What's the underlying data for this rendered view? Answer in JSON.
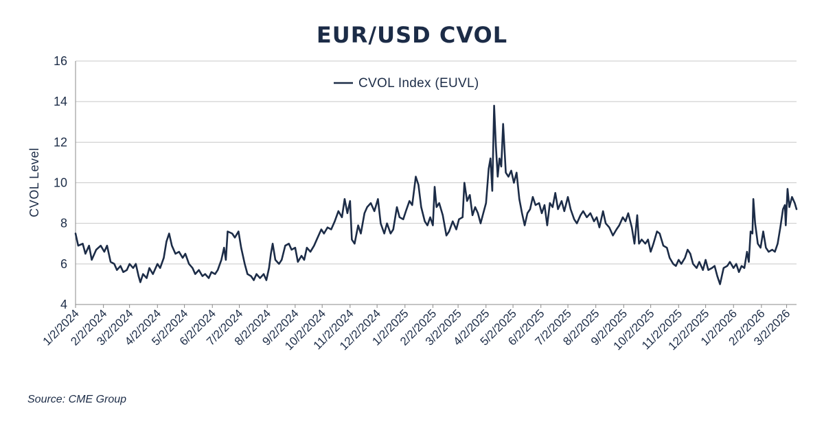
{
  "chart_data": {
    "type": "line",
    "title": "EUR/USD CVOL",
    "ylabel": "CVOL Level",
    "xlabel": "",
    "ylim": [
      4,
      16
    ],
    "y_ticks": [
      "4",
      "6",
      "8",
      "10",
      "12",
      "14",
      "16"
    ],
    "x_range": [
      "2024-01-02",
      "2026-03-13"
    ],
    "x_tick_dates": [
      "2024-01-02",
      "2024-02-02",
      "2024-03-02",
      "2024-04-02",
      "2024-05-02",
      "2024-06-02",
      "2024-07-02",
      "2024-08-02",
      "2024-09-02",
      "2024-10-02",
      "2024-11-02",
      "2024-12-02",
      "2025-01-02",
      "2025-02-02",
      "2025-03-02",
      "2025-04-02",
      "2025-05-02",
      "2025-06-02",
      "2025-07-02",
      "2025-08-02",
      "2025-09-02",
      "2025-10-02",
      "2025-11-02",
      "2025-12-02",
      "2026-01-02",
      "2026-02-02",
      "2026-03-02"
    ],
    "x_tick_labels": [
      "1/2/2024",
      "2/2/2024",
      "3/2/2024",
      "4/2/2024",
      "5/2/2024",
      "6/2/2024",
      "7/2/2024",
      "8/2/2024",
      "9/2/2024",
      "10/2/2024",
      "11/2/2024",
      "12/2/2024",
      "1/2/2025",
      "2/2/2025",
      "3/2/2025",
      "4/2/2025",
      "5/2/2025",
      "6/2/2025",
      "7/2/2025",
      "8/2/2025",
      "9/2/2025",
      "10/2/2025",
      "11/2/2025",
      "12/2/2025",
      "1/2/2026",
      "2/2/2026",
      "3/2/2026"
    ],
    "grid": true,
    "legend": "top-center",
    "series": [
      {
        "name": "CVOL Index (EUVL)",
        "color": "#1c2c47",
        "points": [
          [
            "2024-01-02",
            7.5
          ],
          [
            "2024-01-05",
            6.9
          ],
          [
            "2024-01-10",
            7.0
          ],
          [
            "2024-01-13",
            6.5
          ],
          [
            "2024-01-17",
            6.9
          ],
          [
            "2024-01-20",
            6.2
          ],
          [
            "2024-01-25",
            6.7
          ],
          [
            "2024-01-30",
            6.9
          ],
          [
            "2024-02-03",
            6.6
          ],
          [
            "2024-02-06",
            6.9
          ],
          [
            "2024-02-10",
            6.1
          ],
          [
            "2024-02-14",
            6.0
          ],
          [
            "2024-02-17",
            5.7
          ],
          [
            "2024-02-21",
            5.9
          ],
          [
            "2024-02-24",
            5.6
          ],
          [
            "2024-02-28",
            5.7
          ],
          [
            "2024-03-02",
            6.0
          ],
          [
            "2024-03-06",
            5.8
          ],
          [
            "2024-03-09",
            6.0
          ],
          [
            "2024-03-12",
            5.4
          ],
          [
            "2024-03-14",
            5.1
          ],
          [
            "2024-03-17",
            5.5
          ],
          [
            "2024-03-21",
            5.3
          ],
          [
            "2024-03-24",
            5.8
          ],
          [
            "2024-03-28",
            5.5
          ],
          [
            "2024-04-02",
            6.0
          ],
          [
            "2024-04-05",
            5.8
          ],
          [
            "2024-04-09",
            6.3
          ],
          [
            "2024-04-12",
            7.1
          ],
          [
            "2024-04-15",
            7.5
          ],
          [
            "2024-04-18",
            6.9
          ],
          [
            "2024-04-22",
            6.5
          ],
          [
            "2024-04-26",
            6.6
          ],
          [
            "2024-04-30",
            6.3
          ],
          [
            "2024-05-03",
            6.5
          ],
          [
            "2024-05-07",
            6.0
          ],
          [
            "2024-05-11",
            5.8
          ],
          [
            "2024-05-14",
            5.5
          ],
          [
            "2024-05-18",
            5.7
          ],
          [
            "2024-05-22",
            5.4
          ],
          [
            "2024-05-25",
            5.5
          ],
          [
            "2024-05-29",
            5.3
          ],
          [
            "2024-06-01",
            5.6
          ],
          [
            "2024-06-05",
            5.5
          ],
          [
            "2024-06-08",
            5.7
          ],
          [
            "2024-06-12",
            6.2
          ],
          [
            "2024-06-15",
            6.8
          ],
          [
            "2024-06-17",
            6.2
          ],
          [
            "2024-06-19",
            7.6
          ],
          [
            "2024-06-24",
            7.5
          ],
          [
            "2024-06-27",
            7.3
          ],
          [
            "2024-07-01",
            7.6
          ],
          [
            "2024-07-04",
            6.8
          ],
          [
            "2024-07-08",
            6.0
          ],
          [
            "2024-07-11",
            5.5
          ],
          [
            "2024-07-15",
            5.4
          ],
          [
            "2024-07-18",
            5.2
          ],
          [
            "2024-07-21",
            5.5
          ],
          [
            "2024-07-25",
            5.3
          ],
          [
            "2024-07-29",
            5.5
          ],
          [
            "2024-08-01",
            5.2
          ],
          [
            "2024-08-04",
            5.8
          ],
          [
            "2024-08-06",
            6.5
          ],
          [
            "2024-08-08",
            7.0
          ],
          [
            "2024-08-11",
            6.2
          ],
          [
            "2024-08-15",
            6.0
          ],
          [
            "2024-08-18",
            6.2
          ],
          [
            "2024-08-22",
            6.9
          ],
          [
            "2024-08-26",
            7.0
          ],
          [
            "2024-08-29",
            6.7
          ],
          [
            "2024-09-02",
            6.8
          ],
          [
            "2024-09-05",
            6.1
          ],
          [
            "2024-09-09",
            6.4
          ],
          [
            "2024-09-12",
            6.2
          ],
          [
            "2024-09-15",
            6.8
          ],
          [
            "2024-09-19",
            6.6
          ],
          [
            "2024-09-23",
            6.9
          ],
          [
            "2024-09-26",
            7.2
          ],
          [
            "2024-10-01",
            7.7
          ],
          [
            "2024-10-04",
            7.5
          ],
          [
            "2024-10-08",
            7.8
          ],
          [
            "2024-10-12",
            7.7
          ],
          [
            "2024-10-16",
            8.1
          ],
          [
            "2024-10-20",
            8.6
          ],
          [
            "2024-10-24",
            8.3
          ],
          [
            "2024-10-27",
            9.2
          ],
          [
            "2024-10-30",
            8.5
          ],
          [
            "2024-11-02",
            9.1
          ],
          [
            "2024-11-04",
            7.2
          ],
          [
            "2024-11-07",
            7.0
          ],
          [
            "2024-11-11",
            7.9
          ],
          [
            "2024-11-14",
            7.5
          ],
          [
            "2024-11-18",
            8.5
          ],
          [
            "2024-11-21",
            8.8
          ],
          [
            "2024-11-25",
            9.0
          ],
          [
            "2024-11-29",
            8.6
          ],
          [
            "2024-12-03",
            9.2
          ],
          [
            "2024-12-06",
            8.0
          ],
          [
            "2024-12-10",
            7.5
          ],
          [
            "2024-12-13",
            8.0
          ],
          [
            "2024-12-17",
            7.5
          ],
          [
            "2024-12-20",
            7.7
          ],
          [
            "2024-12-24",
            8.8
          ],
          [
            "2024-12-27",
            8.3
          ],
          [
            "2024-12-31",
            8.2
          ],
          [
            "2025-01-03",
            8.6
          ],
          [
            "2025-01-07",
            9.1
          ],
          [
            "2025-01-10",
            8.9
          ],
          [
            "2025-01-14",
            10.3
          ],
          [
            "2025-01-17",
            9.9
          ],
          [
            "2025-01-20",
            8.8
          ],
          [
            "2025-01-24",
            8.1
          ],
          [
            "2025-01-27",
            7.9
          ],
          [
            "2025-01-30",
            8.3
          ],
          [
            "2025-02-02",
            7.9
          ],
          [
            "2025-02-04",
            9.8
          ],
          [
            "2025-02-06",
            8.8
          ],
          [
            "2025-02-09",
            9.0
          ],
          [
            "2025-02-13",
            8.4
          ],
          [
            "2025-02-17",
            7.4
          ],
          [
            "2025-02-20",
            7.6
          ],
          [
            "2025-02-24",
            8.1
          ],
          [
            "2025-02-28",
            7.7
          ],
          [
            "2025-03-03",
            8.2
          ],
          [
            "2025-03-07",
            8.3
          ],
          [
            "2025-03-09",
            10.0
          ],
          [
            "2025-03-12",
            9.1
          ],
          [
            "2025-03-15",
            9.4
          ],
          [
            "2025-03-18",
            8.4
          ],
          [
            "2025-03-21",
            8.8
          ],
          [
            "2025-03-24",
            8.5
          ],
          [
            "2025-03-27",
            8.0
          ],
          [
            "2025-03-30",
            8.5
          ],
          [
            "2025-04-02",
            9.0
          ],
          [
            "2025-04-05",
            10.7
          ],
          [
            "2025-04-07",
            11.2
          ],
          [
            "2025-04-09",
            9.6
          ],
          [
            "2025-04-11",
            13.8
          ],
          [
            "2025-04-13",
            11.8
          ],
          [
            "2025-04-15",
            10.3
          ],
          [
            "2025-04-17",
            11.2
          ],
          [
            "2025-04-19",
            10.8
          ],
          [
            "2025-04-21",
            12.9
          ],
          [
            "2025-04-24",
            10.5
          ],
          [
            "2025-04-27",
            10.3
          ],
          [
            "2025-04-30",
            10.6
          ],
          [
            "2025-05-03",
            10.0
          ],
          [
            "2025-05-06",
            10.5
          ],
          [
            "2025-05-09",
            9.2
          ],
          [
            "2025-05-12",
            8.5
          ],
          [
            "2025-05-15",
            7.9
          ],
          [
            "2025-05-18",
            8.5
          ],
          [
            "2025-05-21",
            8.7
          ],
          [
            "2025-05-24",
            9.3
          ],
          [
            "2025-05-27",
            8.9
          ],
          [
            "2025-05-31",
            9.0
          ],
          [
            "2025-06-03",
            8.5
          ],
          [
            "2025-06-06",
            8.9
          ],
          [
            "2025-06-09",
            7.9
          ],
          [
            "2025-06-12",
            9.0
          ],
          [
            "2025-06-15",
            8.8
          ],
          [
            "2025-06-18",
            9.5
          ],
          [
            "2025-06-21",
            8.7
          ],
          [
            "2025-06-25",
            9.1
          ],
          [
            "2025-06-28",
            8.6
          ],
          [
            "2025-07-02",
            9.3
          ],
          [
            "2025-07-05",
            8.7
          ],
          [
            "2025-07-09",
            8.2
          ],
          [
            "2025-07-12",
            8.0
          ],
          [
            "2025-07-16",
            8.4
          ],
          [
            "2025-07-19",
            8.6
          ],
          [
            "2025-07-23",
            8.3
          ],
          [
            "2025-07-27",
            8.5
          ],
          [
            "2025-07-31",
            8.1
          ],
          [
            "2025-08-03",
            8.3
          ],
          [
            "2025-08-06",
            7.8
          ],
          [
            "2025-08-10",
            8.6
          ],
          [
            "2025-08-13",
            8.0
          ],
          [
            "2025-08-17",
            7.8
          ],
          [
            "2025-08-21",
            7.4
          ],
          [
            "2025-08-25",
            7.7
          ],
          [
            "2025-08-28",
            7.9
          ],
          [
            "2025-09-01",
            8.3
          ],
          [
            "2025-09-04",
            8.1
          ],
          [
            "2025-09-07",
            8.5
          ],
          [
            "2025-09-11",
            7.8
          ],
          [
            "2025-09-14",
            7.0
          ],
          [
            "2025-09-17",
            8.4
          ],
          [
            "2025-09-19",
            7.0
          ],
          [
            "2025-09-22",
            7.2
          ],
          [
            "2025-09-26",
            7.0
          ],
          [
            "2025-09-29",
            7.2
          ],
          [
            "2025-10-02",
            6.6
          ],
          [
            "2025-10-05",
            7.0
          ],
          [
            "2025-10-09",
            7.6
          ],
          [
            "2025-10-12",
            7.5
          ],
          [
            "2025-10-16",
            6.9
          ],
          [
            "2025-10-20",
            6.8
          ],
          [
            "2025-10-23",
            6.3
          ],
          [
            "2025-10-27",
            6.0
          ],
          [
            "2025-10-30",
            5.9
          ],
          [
            "2025-11-02",
            6.2
          ],
          [
            "2025-11-05",
            6.0
          ],
          [
            "2025-11-09",
            6.3
          ],
          [
            "2025-11-12",
            6.7
          ],
          [
            "2025-11-15",
            6.5
          ],
          [
            "2025-11-18",
            6.0
          ],
          [
            "2025-11-22",
            5.8
          ],
          [
            "2025-11-25",
            6.1
          ],
          [
            "2025-11-29",
            5.7
          ],
          [
            "2025-12-02",
            6.2
          ],
          [
            "2025-12-05",
            5.7
          ],
          [
            "2025-12-09",
            5.8
          ],
          [
            "2025-12-12",
            5.9
          ],
          [
            "2025-12-15",
            5.4
          ],
          [
            "2025-12-18",
            5.0
          ],
          [
            "2025-12-22",
            5.8
          ],
          [
            "2025-12-26",
            5.9
          ],
          [
            "2025-12-29",
            6.1
          ],
          [
            "2026-01-02",
            5.8
          ],
          [
            "2026-01-05",
            6.0
          ],
          [
            "2026-01-08",
            5.6
          ],
          [
            "2026-01-11",
            5.9
          ],
          [
            "2026-01-14",
            5.8
          ],
          [
            "2026-01-17",
            6.6
          ],
          [
            "2026-01-19",
            6.1
          ],
          [
            "2026-01-21",
            7.6
          ],
          [
            "2026-01-23",
            7.5
          ],
          [
            "2026-01-24",
            9.2
          ],
          [
            "2026-01-26",
            8.0
          ],
          [
            "2026-01-29",
            7.0
          ],
          [
            "2026-02-01",
            6.8
          ],
          [
            "2026-02-04",
            7.6
          ],
          [
            "2026-02-07",
            6.8
          ],
          [
            "2026-02-10",
            6.6
          ],
          [
            "2026-02-14",
            6.7
          ],
          [
            "2026-02-17",
            6.6
          ],
          [
            "2026-02-20",
            7.0
          ],
          [
            "2026-02-23",
            7.8
          ],
          [
            "2026-02-26",
            8.7
          ],
          [
            "2026-02-28",
            8.9
          ],
          [
            "2026-03-01",
            7.9
          ],
          [
            "2026-03-03",
            9.7
          ],
          [
            "2026-03-05",
            8.8
          ],
          [
            "2026-03-08",
            9.3
          ],
          [
            "2026-03-11",
            9.0
          ],
          [
            "2026-03-13",
            8.7
          ]
        ]
      }
    ]
  },
  "source": "Source: CME Group"
}
